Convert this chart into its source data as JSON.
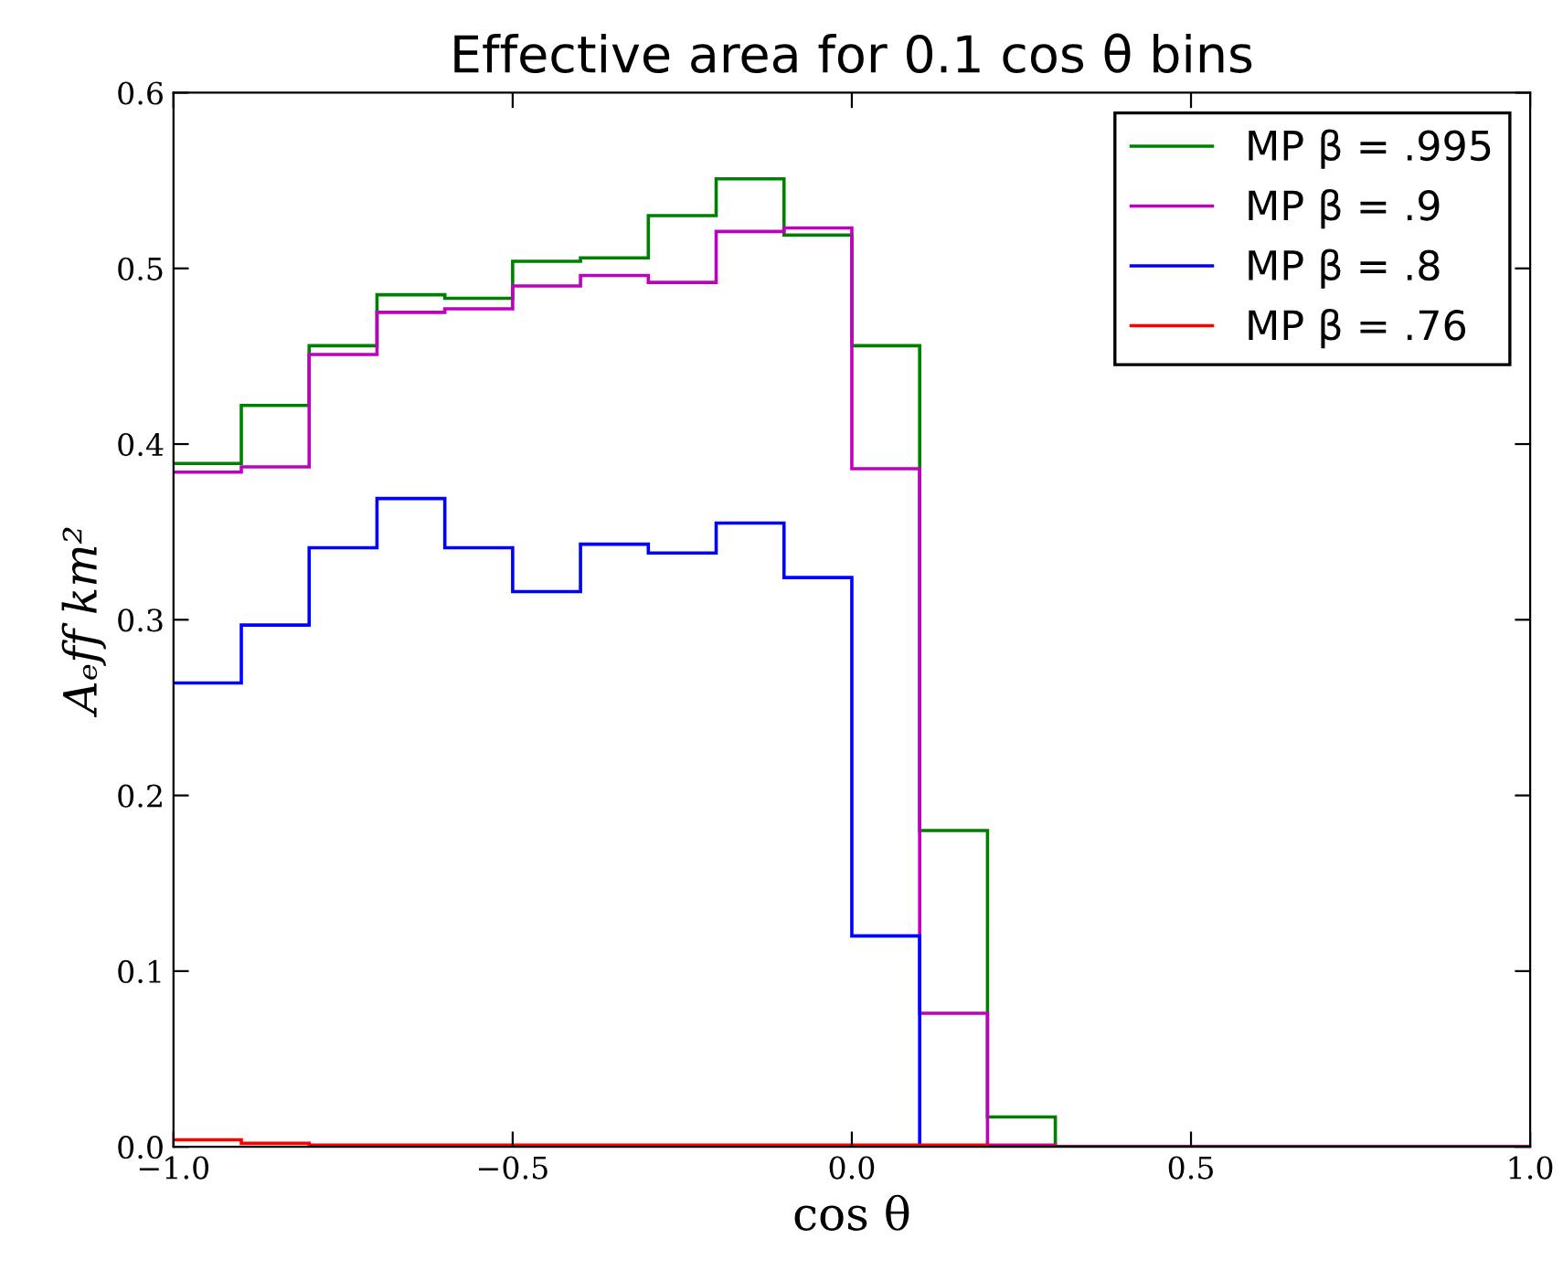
{
  "chart_data": {
    "type": "histogram",
    "title": "Effective area for 0.1 cos θ bins",
    "xlabel": "cos θ",
    "ylabel": "Aₑff km²",
    "bins": [
      -1.0,
      -0.9,
      -0.8,
      -0.7,
      -0.6,
      -0.5,
      -0.4,
      -0.3,
      -0.2,
      -0.1,
      0.0,
      0.1,
      0.2,
      0.3,
      0.4,
      0.5,
      0.6,
      0.7,
      0.8,
      0.9,
      1.0
    ],
    "series": [
      {
        "name": "MP β = .995",
        "color": "#008000",
        "values": [
          0.389,
          0.422,
          0.456,
          0.485,
          0.483,
          0.504,
          0.506,
          0.53,
          0.551,
          0.519,
          0.456,
          0.18,
          0.017,
          0,
          0,
          0,
          0,
          0,
          0,
          0
        ]
      },
      {
        "name": "MP β = .9",
        "color": "#bf00bf",
        "values": [
          0.384,
          0.387,
          0.451,
          0.475,
          0.477,
          0.49,
          0.496,
          0.492,
          0.521,
          0.523,
          0.386,
          0.076,
          0.001,
          0,
          0,
          0,
          0,
          0,
          0,
          0
        ]
      },
      {
        "name": "MP β = .8",
        "color": "#0000ff",
        "values": [
          0.264,
          0.297,
          0.341,
          0.369,
          0.341,
          0.316,
          0.343,
          0.338,
          0.355,
          0.324,
          0.12,
          0,
          0,
          0,
          0,
          0,
          0,
          0,
          0,
          0
        ]
      },
      {
        "name": "MP β = .76",
        "color": "#ff0000",
        "values": [
          0.004,
          0.002,
          0.001,
          0.001,
          0.001,
          0.001,
          0.001,
          0.001,
          0.001,
          0.001,
          0.001,
          0.001,
          0,
          0,
          0,
          0,
          0,
          0,
          0,
          0
        ]
      }
    ],
    "xlim": [
      -1.0,
      1.0
    ],
    "ylim": [
      0,
      0.6
    ],
    "xticks": [
      {
        "value": -1.0,
        "label": "−1.0"
      },
      {
        "value": -0.5,
        "label": "−0.5"
      },
      {
        "value": 0,
        "label": "0.0"
      },
      {
        "value": 0.5,
        "label": "0.5"
      },
      {
        "value": 1.0,
        "label": "1.0"
      }
    ],
    "yticks": [
      {
        "value": 0,
        "label": "0.0"
      },
      0.1,
      0.2,
      0.3,
      0.4,
      0.5,
      0.6
    ],
    "legend": "top right",
    "grid": false
  }
}
